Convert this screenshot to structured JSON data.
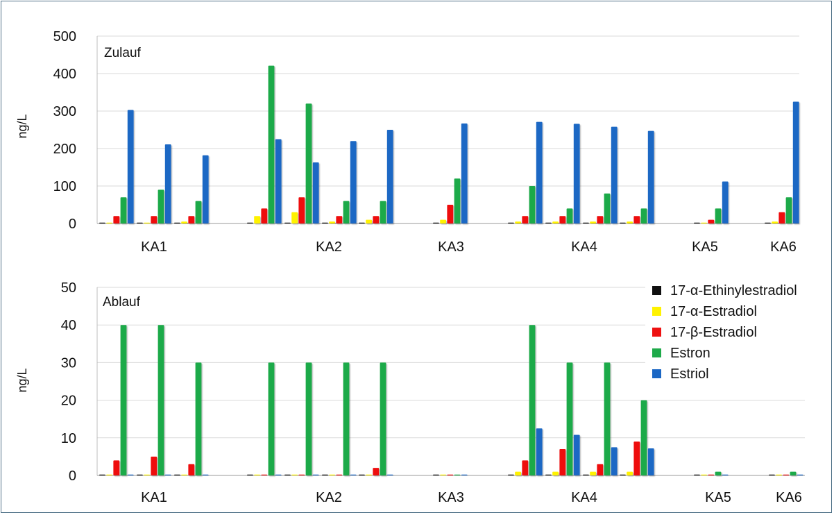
{
  "colors": {
    "17-α-Ethinylestradiol": "#101010",
    "17-α-Estradiol": "#fff200",
    "17-β-Estradiol": "#ee1111",
    "Estron": "#1eaa4a",
    "Estriol": "#1b67c4"
  },
  "legend": {
    "entries": [
      "17-α-Ethinylestradiol",
      "17-α-Estradiol",
      "17-β-Estradiol",
      "Estron",
      "Estriol"
    ],
    "placement": "right of lower panel"
  },
  "chart_data": [
    {
      "type": "bar",
      "title": "Zulauf",
      "ylabel": "ng/L",
      "ylim": [
        0,
        500
      ],
      "yticks": [
        "0",
        "100",
        "200",
        "300",
        "400",
        "500"
      ],
      "group_labels": [
        "KA1",
        "KA2",
        "KA3",
        "KA4",
        "KA5",
        "KA6"
      ],
      "grid": true,
      "series_names": [
        "17-α-Ethinylestradiol",
        "17-α-Estradiol",
        "17-β-Estradiol",
        "Estron",
        "Estriol"
      ],
      "samples": [
        {
          "group": "KA1",
          "values": [
            1,
            2,
            20,
            70,
            303
          ]
        },
        {
          "group": "KA1",
          "values": [
            1,
            2,
            20,
            90,
            211
          ]
        },
        {
          "group": "KA1",
          "values": [
            2,
            5,
            20,
            60,
            182
          ]
        },
        {
          "group": "KA2",
          "values": [
            2,
            20,
            40,
            421,
            225
          ]
        },
        {
          "group": "KA2",
          "values": [
            2,
            30,
            70,
            320,
            163
          ]
        },
        {
          "group": "KA2",
          "values": [
            2,
            5,
            20,
            60,
            220
          ]
        },
        {
          "group": "KA2",
          "values": [
            2,
            10,
            20,
            60,
            250
          ]
        },
        {
          "group": "KA3",
          "values": [
            2,
            10,
            50,
            120,
            267
          ]
        },
        {
          "group": "KA4",
          "values": [
            1,
            5,
            20,
            100,
            271
          ]
        },
        {
          "group": "KA4",
          "values": [
            2,
            5,
            20,
            40,
            266
          ]
        },
        {
          "group": "KA4",
          "values": [
            2,
            5,
            20,
            80,
            258
          ]
        },
        {
          "group": "KA4",
          "values": [
            2,
            5,
            20,
            40,
            247
          ]
        },
        {
          "group": "KA5",
          "values": [
            0,
            2,
            10,
            40,
            112
          ]
        },
        {
          "group": "KA6",
          "values": [
            1,
            5,
            30,
            70,
            325
          ]
        }
      ]
    },
    {
      "type": "bar",
      "title": "Ablauf",
      "ylabel": "ng/L",
      "ylim": [
        0,
        50
      ],
      "yticks": [
        "0",
        "10",
        "20",
        "30",
        "40",
        "50"
      ],
      "group_labels": [
        "KA1",
        "KA2",
        "KA3",
        "KA4",
        "KA5",
        "KA6"
      ],
      "grid": true,
      "series_names": [
        "17-α-Ethinylestradiol",
        "17-α-Estradiol",
        "17-β-Estradiol",
        "Estron",
        "Estriol"
      ],
      "samples": [
        {
          "group": "KA1",
          "values": [
            0.1,
            0.1,
            4,
            40,
            0.1
          ]
        },
        {
          "group": "KA1",
          "values": [
            0.1,
            0.1,
            5,
            40,
            0.1
          ]
        },
        {
          "group": "KA1",
          "values": [
            0.1,
            0.1,
            3,
            30,
            0.1
          ]
        },
        {
          "group": "KA2",
          "values": [
            0.1,
            0.1,
            0.1,
            30,
            0.1
          ]
        },
        {
          "group": "KA2",
          "values": [
            0.1,
            0.1,
            0.1,
            30,
            0.1
          ]
        },
        {
          "group": "KA2",
          "values": [
            0.1,
            0.1,
            0.1,
            30,
            0.1
          ]
        },
        {
          "group": "KA2",
          "values": [
            0.1,
            0.1,
            2,
            30,
            0.1
          ]
        },
        {
          "group": "KA3",
          "values": [
            0.1,
            0.1,
            0.1,
            0.1,
            0.1
          ]
        },
        {
          "group": "KA4",
          "values": [
            0.1,
            1,
            4,
            40,
            12.5
          ]
        },
        {
          "group": "KA4",
          "values": [
            0.1,
            1,
            7,
            30,
            10.8
          ]
        },
        {
          "group": "KA4",
          "values": [
            0.1,
            1,
            3,
            30,
            7.5
          ]
        },
        {
          "group": "KA4",
          "values": [
            0.1,
            1,
            9,
            20,
            7.2
          ]
        },
        {
          "group": "KA5",
          "values": [
            0.1,
            0.1,
            0.1,
            1,
            0.1
          ]
        },
        {
          "group": "KA6",
          "values": [
            0.1,
            0.1,
            0.1,
            1,
            0.1
          ]
        }
      ]
    }
  ]
}
